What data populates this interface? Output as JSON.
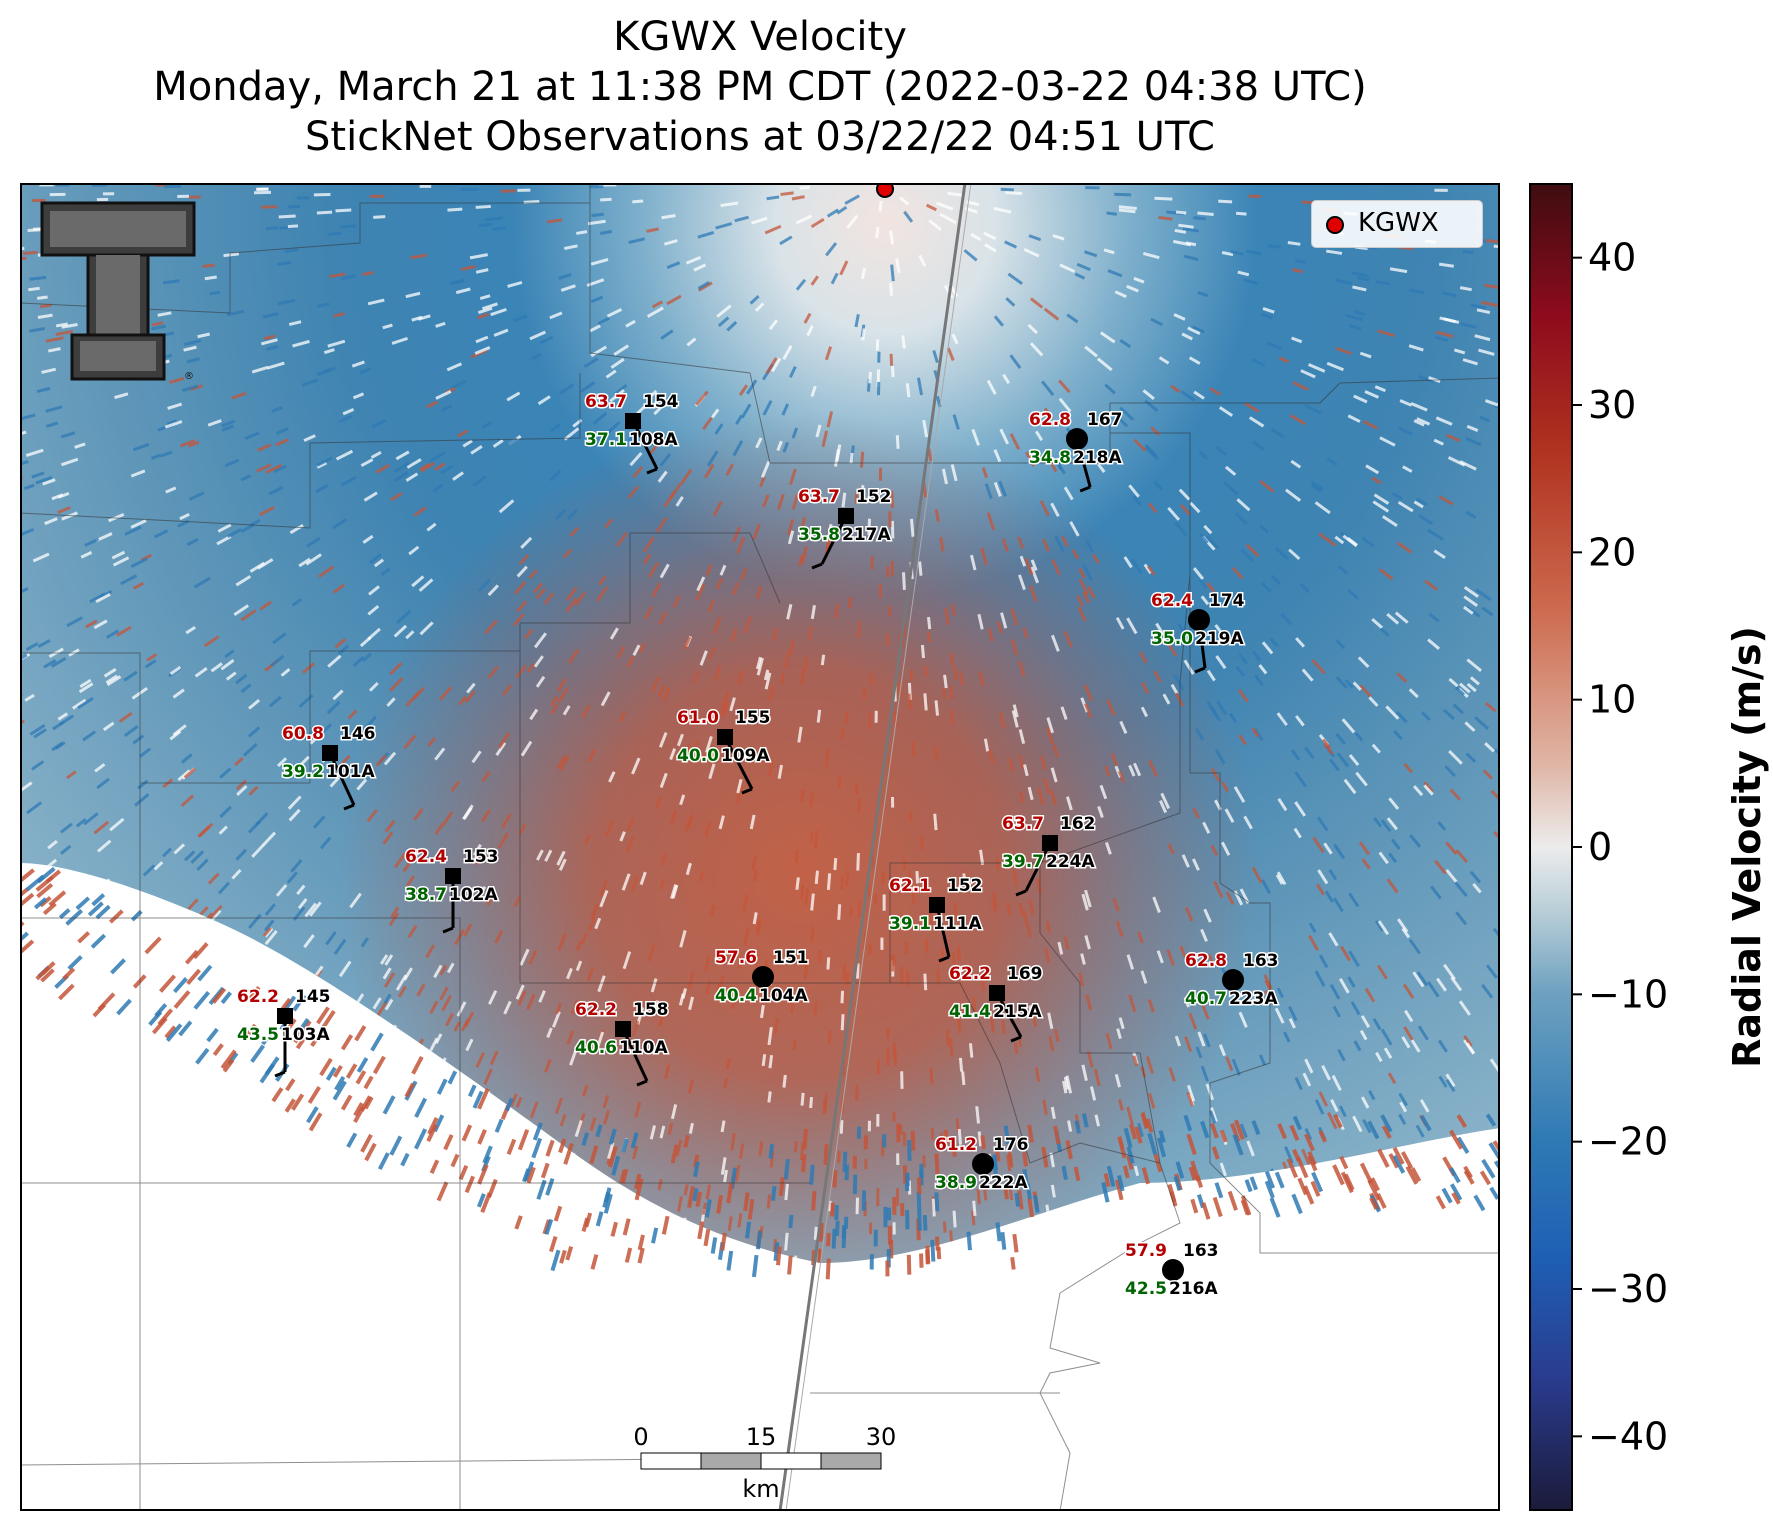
{
  "title": {
    "line1": "KGWX Velocity",
    "line2": "Monday, March 21 at 11:38 PM CDT (2022-03-22 04:38 UTC)",
    "line3": "StickNet Observations at 03/22/22 04:51 UTC"
  },
  "legend": {
    "label": "KGWX",
    "marker_color": "#e00000"
  },
  "colorbar": {
    "label": "Radial Velocity (m/s)",
    "range": [
      -45,
      45
    ],
    "ticks": [
      {
        "value": 40,
        "label": "40"
      },
      {
        "value": 30,
        "label": "30"
      },
      {
        "value": 20,
        "label": "20"
      },
      {
        "value": 10,
        "label": "10"
      },
      {
        "value": 0,
        "label": "0"
      },
      {
        "value": -10,
        "label": "−10"
      },
      {
        "value": -20,
        "label": "−20"
      },
      {
        "value": -30,
        "label": "−30"
      },
      {
        "value": -40,
        "label": "−40"
      }
    ],
    "colors": [
      "#1b1b3a",
      "#2a3c8f",
      "#1e5fb4",
      "#2f7ab4",
      "#6ea1c0",
      "#b7cdd7",
      "#ececec",
      "#e0b7a7",
      "#cd6a4e",
      "#b0321f",
      "#8e0b1d",
      "#3f0d10"
    ]
  },
  "scale_bar": {
    "ticks": [
      "0",
      "15",
      "30"
    ],
    "unit": "km"
  },
  "logo": {
    "letter": "T",
    "mark": "®"
  },
  "stations": [
    {
      "id": "108A",
      "temp": "63.7",
      "dew": "37.1",
      "dir": "154",
      "marker": "square"
    },
    {
      "id": "218A",
      "temp": "62.8",
      "dew": "34.8",
      "dir": "167",
      "marker": "circle"
    },
    {
      "id": "217A",
      "temp": "63.7",
      "dew": "35.8",
      "dir": "152",
      "marker": "square"
    },
    {
      "id": "219A",
      "temp": "62.4",
      "dew": "35.0",
      "dir": "174",
      "marker": "circle"
    },
    {
      "id": "101A",
      "temp": "60.8",
      "dew": "39.2",
      "dir": "146",
      "marker": "square"
    },
    {
      "id": "109A",
      "temp": "61.0",
      "dew": "40.0",
      "dir": "155",
      "marker": "square"
    },
    {
      "id": "224A",
      "temp": "63.7",
      "dew": "39.7",
      "dir": "162",
      "marker": "square"
    },
    {
      "id": "102A",
      "temp": "62.4",
      "dew": "38.7",
      "dir": "153",
      "marker": "square"
    },
    {
      "id": "111A",
      "temp": "62.1",
      "dew": "39.1",
      "dir": "152",
      "marker": "square"
    },
    {
      "id": "104A",
      "temp": "57.6",
      "dew": "40.4",
      "dir": "151",
      "marker": "circle"
    },
    {
      "id": "223A",
      "temp": "62.8",
      "dew": "40.7",
      "dir": "163",
      "marker": "circle"
    },
    {
      "id": "215A",
      "temp": "62.2",
      "dew": "41.4",
      "dir": "169",
      "marker": "square"
    },
    {
      "id": "103A",
      "temp": "62.2",
      "dew": "43.5",
      "dir": "145",
      "marker": "square"
    },
    {
      "id": "110A",
      "temp": "62.2",
      "dew": "40.6",
      "dir": "158",
      "marker": "square"
    },
    {
      "id": "222A",
      "temp": "61.2",
      "dew": "38.9",
      "dir": "176",
      "marker": "circle"
    },
    {
      "id": "216A",
      "temp": "57.9",
      "dew": "42.5",
      "dir": "163",
      "marker": "circle"
    }
  ]
}
